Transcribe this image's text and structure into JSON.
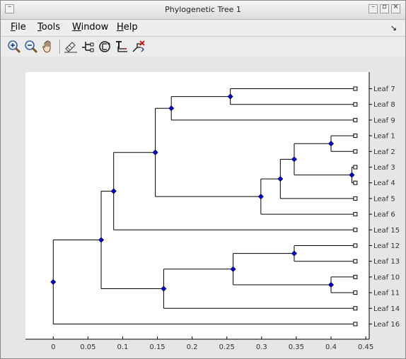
{
  "window": {
    "title": "Phylogenetic Tree 1",
    "minimize_glyph": "–",
    "maximize_glyph": "▫",
    "close_glyph": "×"
  },
  "menubar": {
    "items": [
      {
        "id": "file",
        "mnemonic": "F",
        "rest": "ile"
      },
      {
        "id": "tools",
        "mnemonic": "T",
        "rest": "ools"
      },
      {
        "id": "window",
        "mnemonic": "W",
        "rest": "indow"
      },
      {
        "id": "help",
        "mnemonic": "H",
        "rest": "elp"
      }
    ],
    "dock_glyph": "↘"
  },
  "toolbar": {
    "tools": [
      {
        "icon": "zoom-in-icon"
      },
      {
        "icon": "zoom-out-icon"
      },
      {
        "icon": "pan-hand-icon"
      },
      {
        "icon": "inspect-tool-icon"
      },
      {
        "icon": "collapse-expand-icon"
      },
      {
        "icon": "rotate-branch-icon"
      },
      {
        "icon": "rename-icon"
      },
      {
        "icon": "prune-icon"
      }
    ]
  },
  "chart_data": {
    "type": "phylogenetic-tree",
    "title": "",
    "xlabel": "",
    "ylabel": "",
    "xlim": [
      -0.04,
      0.455
    ],
    "xticks": [
      0,
      0.05,
      0.1,
      0.15,
      0.2,
      0.25,
      0.3,
      0.35,
      0.4,
      0.45
    ],
    "xtick_labels": [
      "0",
      "0.05",
      "0.1",
      "0.15",
      "0.2",
      "0.25",
      "0.3",
      "0.35",
      "0.4",
      "0.45"
    ],
    "leaf_x": 0.435,
    "leaves": [
      "Leaf 7",
      "Leaf 8",
      "Leaf 9",
      "Leaf 1",
      "Leaf 2",
      "Leaf 3",
      "Leaf 4",
      "Leaf 5",
      "Leaf 6",
      "Leaf 15",
      "Leaf 12",
      "Leaf 13",
      "Leaf 10",
      "Leaf 11",
      "Leaf 14",
      "Leaf 16"
    ],
    "internal_nodes": [
      {
        "id": "n78",
        "x": 0.255,
        "children": [
          "Leaf 7",
          "Leaf 8"
        ]
      },
      {
        "id": "n789",
        "x": 0.17,
        "children": [
          "n78",
          "Leaf 9"
        ]
      },
      {
        "id": "n12",
        "x": 0.4,
        "children": [
          "Leaf 1",
          "Leaf 2"
        ]
      },
      {
        "id": "n34",
        "x": 0.43,
        "children": [
          "Leaf 3",
          "Leaf 4"
        ]
      },
      {
        "id": "n1234",
        "x": 0.347,
        "children": [
          "n12",
          "n34"
        ]
      },
      {
        "id": "n12345",
        "x": 0.327,
        "children": [
          "n1234",
          "Leaf 5"
        ]
      },
      {
        "id": "n123456",
        "x": 0.299,
        "children": [
          "n12345",
          "Leaf 6"
        ]
      },
      {
        "id": "nA",
        "x": 0.147,
        "children": [
          "n789",
          "n123456"
        ]
      },
      {
        "id": "nB",
        "x": 0.087,
        "children": [
          "nA",
          "Leaf 15"
        ]
      },
      {
        "id": "n1213",
        "x": 0.347,
        "children": [
          "Leaf 12",
          "Leaf 13"
        ]
      },
      {
        "id": "n1011",
        "x": 0.4,
        "children": [
          "Leaf 10",
          "Leaf 11"
        ]
      },
      {
        "id": "nC",
        "x": 0.259,
        "children": [
          "n1213",
          "n1011"
        ]
      },
      {
        "id": "nD",
        "x": 0.159,
        "children": [
          "nC",
          "Leaf 14"
        ]
      },
      {
        "id": "nE",
        "x": 0.069,
        "children": [
          "nB",
          "nD"
        ]
      },
      {
        "id": "root",
        "x": 0.0,
        "children": [
          "nE",
          "Leaf 16"
        ]
      }
    ],
    "grid": false,
    "colors": {
      "branch": "#000000",
      "node_fill": "#0000cc",
      "leaf_fill": "#ffffff"
    }
  }
}
